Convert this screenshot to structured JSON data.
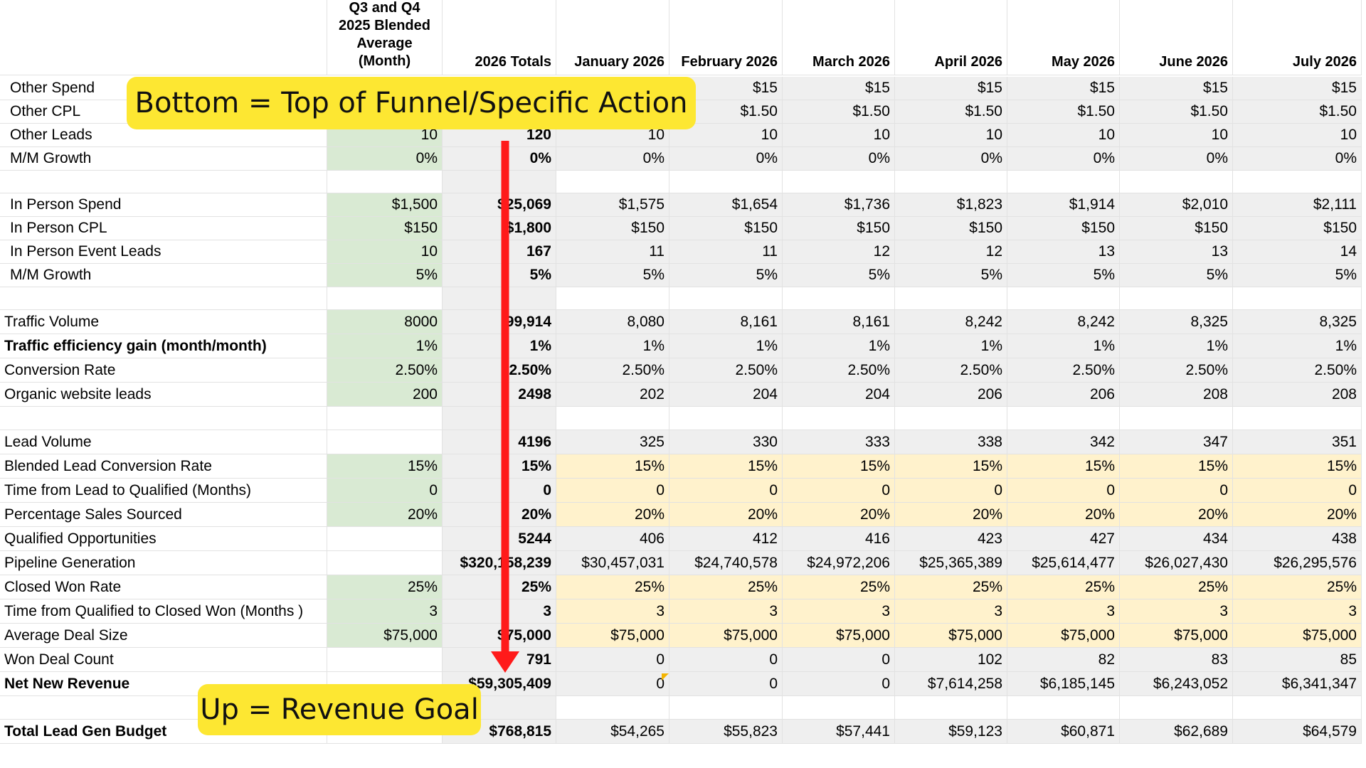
{
  "header": {
    "blended": "Q3 and Q4 2025 Blended Average (Month)",
    "totals": "2026 Totals",
    "months": [
      "January 2026",
      "February 2026",
      "March 2026",
      "April 2026",
      "May 2026",
      "June 2026",
      "July 2026"
    ]
  },
  "rows": [
    {
      "id": "other-spend",
      "label": "Other Spend",
      "indent": true,
      "bold": false,
      "blend": "",
      "total": "",
      "months": [
        "",
        "$15",
        "$15",
        "$15",
        "$15",
        "$15",
        "$15"
      ],
      "bg": [
        "green",
        "gray",
        "gray",
        "gray",
        "gray",
        "gray",
        "gray",
        "gray",
        "gray"
      ]
    },
    {
      "id": "other-cpl",
      "label": "Other CPL",
      "indent": true,
      "bold": false,
      "blend": "",
      "total": "",
      "months": [
        "",
        "$1.50",
        "$1.50",
        "$1.50",
        "$1.50",
        "$1.50",
        "$1.50"
      ],
      "bg": [
        "green",
        "gray",
        "gray",
        "gray",
        "gray",
        "gray",
        "gray",
        "gray",
        "gray"
      ]
    },
    {
      "id": "other-leads",
      "label": "Other Leads",
      "indent": true,
      "bold": false,
      "blend": "10",
      "total": "120",
      "months": [
        "10",
        "10",
        "10",
        "10",
        "10",
        "10",
        "10"
      ],
      "bg": [
        "green",
        "gray",
        "gray",
        "gray",
        "gray",
        "gray",
        "gray",
        "gray",
        "gray"
      ]
    },
    {
      "id": "mm-growth-other",
      "label": "M/M Growth",
      "indent": true,
      "bold": false,
      "blend": "0%",
      "total": "0%",
      "months": [
        "0%",
        "0%",
        "0%",
        "0%",
        "0%",
        "0%",
        "0%"
      ],
      "bg": [
        "green",
        "gray",
        "gray",
        "gray",
        "gray",
        "gray",
        "gray",
        "gray",
        "gray"
      ]
    },
    {
      "id": "spacer-1",
      "spacer": true
    },
    {
      "id": "in-person-spend",
      "label": "In Person Spend",
      "indent": true,
      "bold": false,
      "blend": "$1,500",
      "total": "$25,069",
      "months": [
        "$1,575",
        "$1,654",
        "$1,736",
        "$1,823",
        "$1,914",
        "$2,010",
        "$2,111"
      ],
      "bg": [
        "green",
        "gray",
        "gray",
        "gray",
        "gray",
        "gray",
        "gray",
        "gray",
        "gray"
      ]
    },
    {
      "id": "in-person-cpl",
      "label": "In Person CPL",
      "indent": true,
      "bold": false,
      "blend": "$150",
      "total": "$1,800",
      "months": [
        "$150",
        "$150",
        "$150",
        "$150",
        "$150",
        "$150",
        "$150"
      ],
      "bg": [
        "green",
        "gray",
        "gray",
        "gray",
        "gray",
        "gray",
        "gray",
        "gray",
        "gray"
      ]
    },
    {
      "id": "in-person-event-leads",
      "label": "In Person Event Leads",
      "indent": true,
      "bold": false,
      "blend": "10",
      "total": "167",
      "months": [
        "11",
        "11",
        "12",
        "12",
        "13",
        "13",
        "14"
      ],
      "bg": [
        "green",
        "gray",
        "gray",
        "gray",
        "gray",
        "gray",
        "gray",
        "gray",
        "gray"
      ]
    },
    {
      "id": "mm-growth-in-person",
      "label": "M/M Growth",
      "indent": true,
      "bold": false,
      "blend": "5%",
      "total": "5%",
      "months": [
        "5%",
        "5%",
        "5%",
        "5%",
        "5%",
        "5%",
        "5%"
      ],
      "bg": [
        "green",
        "gray",
        "gray",
        "gray",
        "gray",
        "gray",
        "gray",
        "gray",
        "gray"
      ]
    },
    {
      "id": "spacer-2",
      "spacer": true
    },
    {
      "id": "traffic-volume",
      "label": "Traffic Volume",
      "indent": false,
      "bold": false,
      "blend": "8000",
      "total": "99,914",
      "months": [
        "8,080",
        "8,161",
        "8,161",
        "8,242",
        "8,242",
        "8,325",
        "8,325"
      ],
      "bg": [
        "green",
        "gray",
        "gray",
        "gray",
        "gray",
        "gray",
        "gray",
        "gray",
        "gray"
      ]
    },
    {
      "id": "traffic-efficiency",
      "label": "Traffic efficiency gain (month/month)",
      "indent": false,
      "bold": true,
      "blend": "1%",
      "total": "1%",
      "months": [
        "1%",
        "1%",
        "1%",
        "1%",
        "1%",
        "1%",
        "1%"
      ],
      "bg": [
        "green",
        "gray",
        "gray",
        "gray",
        "gray",
        "gray",
        "gray",
        "gray",
        "gray"
      ]
    },
    {
      "id": "conversion-rate",
      "label": "Conversion Rate",
      "indent": false,
      "bold": false,
      "blend": "2.50%",
      "total": "2.50%",
      "months": [
        "2.50%",
        "2.50%",
        "2.50%",
        "2.50%",
        "2.50%",
        "2.50%",
        "2.50%"
      ],
      "bg": [
        "green",
        "gray",
        "gray",
        "gray",
        "gray",
        "gray",
        "gray",
        "gray",
        "gray"
      ]
    },
    {
      "id": "organic-leads",
      "label": "Organic website leads",
      "indent": false,
      "bold": false,
      "blend": "200",
      "total": "2498",
      "months": [
        "202",
        "204",
        "204",
        "206",
        "206",
        "208",
        "208"
      ],
      "bg": [
        "green",
        "gray",
        "gray",
        "gray",
        "gray",
        "gray",
        "gray",
        "gray",
        "gray"
      ]
    },
    {
      "id": "spacer-3",
      "spacer": true
    },
    {
      "id": "lead-volume",
      "label": "Lead Volume",
      "indent": false,
      "bold": false,
      "blend": "",
      "total": "4196",
      "months": [
        "325",
        "330",
        "333",
        "338",
        "342",
        "347",
        "351"
      ],
      "bg": [
        "none",
        "gray",
        "gray",
        "gray",
        "gray",
        "gray",
        "gray",
        "gray",
        "gray"
      ]
    },
    {
      "id": "blended-lead-conversion",
      "label": "Blended Lead Conversion Rate",
      "indent": false,
      "bold": false,
      "blend": "15%",
      "total": "15%",
      "months": [
        "15%",
        "15%",
        "15%",
        "15%",
        "15%",
        "15%",
        "15%"
      ],
      "bg": [
        "green",
        "gray",
        "yellow",
        "yellow",
        "yellow",
        "yellow",
        "yellow",
        "yellow",
        "yellow"
      ]
    },
    {
      "id": "time-lead-qualified",
      "label": "Time from Lead to Qualified (Months)",
      "indent": false,
      "bold": false,
      "blend": "0",
      "total": "0",
      "months": [
        "0",
        "0",
        "0",
        "0",
        "0",
        "0",
        "0"
      ],
      "bg": [
        "green",
        "gray",
        "yellow",
        "yellow",
        "yellow",
        "yellow",
        "yellow",
        "yellow",
        "yellow"
      ]
    },
    {
      "id": "percentage-sales-sourced",
      "label": "Percentage Sales Sourced",
      "indent": false,
      "bold": false,
      "blend": "20%",
      "total": "20%",
      "months": [
        "20%",
        "20%",
        "20%",
        "20%",
        "20%",
        "20%",
        "20%"
      ],
      "bg": [
        "green",
        "gray",
        "yellow",
        "yellow",
        "yellow",
        "yellow",
        "yellow",
        "yellow",
        "yellow"
      ]
    },
    {
      "id": "qualified-opportunities",
      "label": "Qualified Opportunities",
      "indent": false,
      "bold": false,
      "blend": "",
      "total": "5244",
      "months": [
        "406",
        "412",
        "416",
        "423",
        "427",
        "434",
        "438"
      ],
      "bg": [
        "none",
        "gray",
        "gray",
        "gray",
        "gray",
        "gray",
        "gray",
        "gray",
        "gray"
      ]
    },
    {
      "id": "pipeline-generation",
      "label": "Pipeline Generation",
      "indent": false,
      "bold": false,
      "blend": "",
      "total": "$320,158,239",
      "months": [
        "$30,457,031",
        "$24,740,578",
        "$24,972,206",
        "$25,365,389",
        "$25,614,477",
        "$26,027,430",
        "$26,295,576"
      ],
      "bg": [
        "none",
        "gray",
        "gray",
        "gray",
        "gray",
        "gray",
        "gray",
        "gray",
        "gray"
      ]
    },
    {
      "id": "closed-won-rate",
      "label": "Closed Won Rate",
      "indent": false,
      "bold": false,
      "blend": "25%",
      "total": "25%",
      "months": [
        "25%",
        "25%",
        "25%",
        "25%",
        "25%",
        "25%",
        "25%"
      ],
      "bg": [
        "green",
        "gray",
        "yellow",
        "yellow",
        "yellow",
        "yellow",
        "yellow",
        "yellow",
        "yellow"
      ]
    },
    {
      "id": "time-qualified-closed",
      "label": "Time from Qualified to Closed Won (Months )",
      "indent": false,
      "bold": false,
      "blend": "3",
      "total": "3",
      "months": [
        "3",
        "3",
        "3",
        "3",
        "3",
        "3",
        "3"
      ],
      "bg": [
        "green",
        "gray",
        "yellow",
        "yellow",
        "yellow",
        "yellow",
        "yellow",
        "yellow",
        "yellow"
      ]
    },
    {
      "id": "average-deal-size",
      "label": "Average Deal Size",
      "indent": false,
      "bold": false,
      "blend": "$75,000",
      "total": "$75,000",
      "months": [
        "$75,000",
        "$75,000",
        "$75,000",
        "$75,000",
        "$75,000",
        "$75,000",
        "$75,000"
      ],
      "bg": [
        "green",
        "gray",
        "yellow",
        "yellow",
        "yellow",
        "yellow",
        "yellow",
        "yellow",
        "yellow"
      ]
    },
    {
      "id": "won-deal-count",
      "label": "Won Deal Count",
      "indent": false,
      "bold": false,
      "blend": "",
      "total": "791",
      "months": [
        "0",
        "0",
        "0",
        "102",
        "82",
        "83",
        "85"
      ],
      "bg": [
        "none",
        "gray",
        "gray",
        "gray",
        "gray",
        "gray",
        "gray",
        "gray",
        "gray"
      ]
    },
    {
      "id": "net-new-revenue",
      "label": "Net New Revenue",
      "indent": false,
      "bold": true,
      "blend": "",
      "total": "$59,305,409",
      "months": [
        "0",
        "0",
        "0",
        "$7,614,258",
        "$6,185,145",
        "$6,243,052",
        "$6,341,347"
      ],
      "bg": [
        "none",
        "gray",
        "gray",
        "gray",
        "gray",
        "gray",
        "gray",
        "gray",
        "gray"
      ]
    },
    {
      "id": "spacer-4",
      "spacer": true
    },
    {
      "id": "total-lead-gen-budget",
      "label": "Total Lead Gen Budget",
      "indent": false,
      "bold": true,
      "blend": "",
      "total": "$768,815",
      "months": [
        "$54,265",
        "$55,823",
        "$57,441",
        "$59,123",
        "$60,871",
        "$62,689",
        "$64,579"
      ],
      "bg": [
        "none",
        "gray",
        "gray",
        "gray",
        "gray",
        "gray",
        "gray",
        "gray",
        "gray"
      ]
    }
  ],
  "callouts": {
    "top": "Bottom = Top of Funnel/Specific Action",
    "bottom": "Up = Revenue Goal"
  },
  "colors": {
    "callout": "#fde732",
    "arrow": "#ff1a1a",
    "input_green": "#d9ead3",
    "calc_gray": "#efefef",
    "assumption_yellow": "#fff2cc"
  }
}
